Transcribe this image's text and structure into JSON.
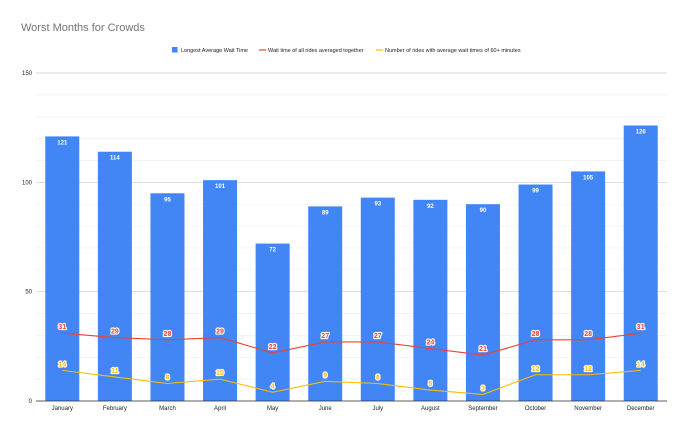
{
  "chart_data": {
    "type": "bar",
    "title": "Worst Months for Crowds",
    "categories": [
      "January",
      "February",
      "March",
      "April",
      "May",
      "June",
      "July",
      "August",
      "September",
      "October",
      "November",
      "December"
    ],
    "ylim": [
      0,
      150
    ],
    "yticks": [
      0,
      50,
      100,
      150
    ],
    "grid": true,
    "legend_position": "top",
    "series": [
      {
        "name": "Longest Average Wait Time",
        "type": "bar",
        "color": "#4285f4",
        "values": [
          121,
          114,
          95,
          101,
          72,
          89,
          93,
          92,
          90,
          99,
          105,
          126
        ]
      },
      {
        "name": "Wait time of all rides averaged together",
        "type": "line",
        "color": "#ea4335",
        "values": [
          31,
          29,
          28,
          29,
          22,
          27,
          27,
          24,
          21,
          28,
          28,
          31
        ]
      },
      {
        "name": "Number of rides with average wait times of 60+ minutes",
        "type": "line",
        "color": "#fbbc04",
        "values": [
          14,
          11,
          8,
          10,
          4,
          9,
          8,
          5,
          3,
          12,
          12,
          14
        ]
      }
    ]
  }
}
